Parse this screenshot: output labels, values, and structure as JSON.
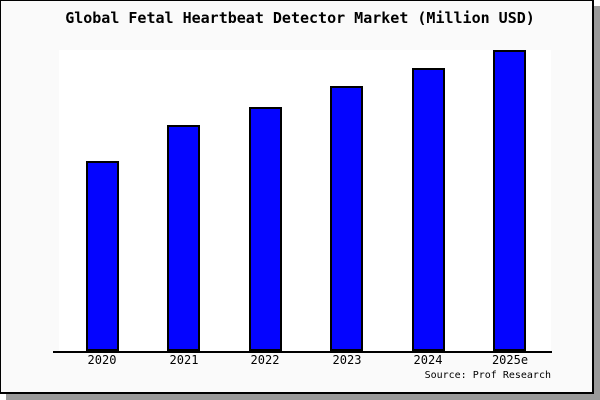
{
  "window": {
    "canvas_bg": "#FAFAFA",
    "plot_bg": "#FFFFFF",
    "border_color": "#000000",
    "shadow_color": "#9A9A9A"
  },
  "chart_data": {
    "type": "bar",
    "title": "Global Fetal Heartbeat Detector Market (Million USD)",
    "categories": [
      "2020",
      "2021",
      "2022",
      "2023",
      "2024",
      "2025e"
    ],
    "values": [
      63,
      75,
      81,
      88,
      94,
      100
    ],
    "values_note": "no value axis is shown in the image; values are estimated relative heights as percent of the tallest (2025e) bar",
    "xlabel": "",
    "ylabel": "",
    "ylim": [
      0,
      100
    ],
    "grid": false,
    "legend": false,
    "bar_fill": "#0404FF",
    "bar_border": "#000000"
  },
  "source": {
    "text": "Source: Prof Research"
  }
}
